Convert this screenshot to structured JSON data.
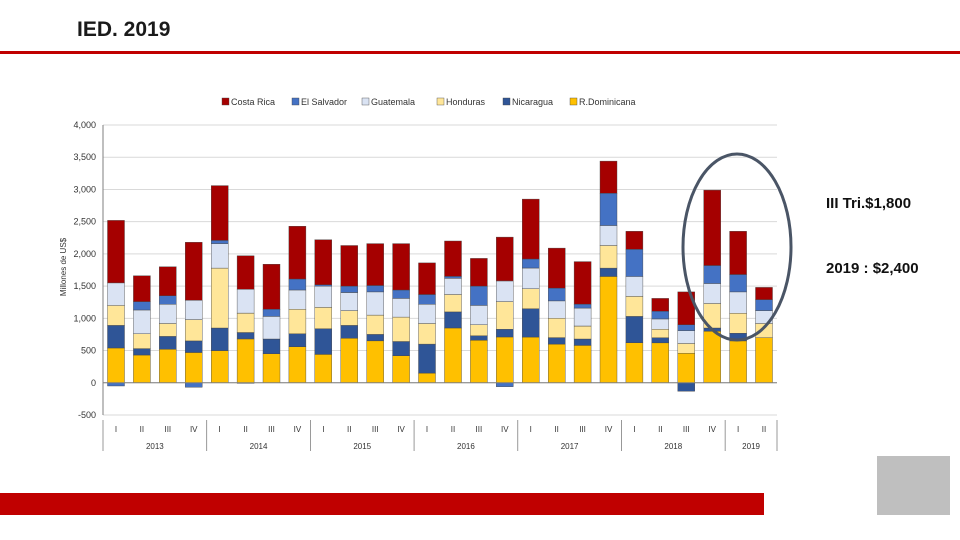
{
  "slide": {
    "title": "IED. 2019"
  },
  "annotations": {
    "quarter_note": "III Tri.$1,800",
    "year_note": "2019 : $2,400"
  },
  "colors": {
    "accent_red": "#c00000",
    "gray_box": "#bfbfbf",
    "highlight_ellipse": "#4a5566"
  },
  "chart_data": {
    "type": "bar",
    "stacked": true,
    "ylabel": "Millones de US$",
    "ylim": [
      -500,
      4000
    ],
    "yticks": [
      -500,
      0,
      500,
      1000,
      1500,
      2000,
      2500,
      3000,
      3500,
      4000
    ],
    "ytick_labels": [
      "-500",
      "0",
      "500",
      "1,000",
      "1,500",
      "2,000",
      "2,500",
      "3,000",
      "3,500",
      "4,000"
    ],
    "grid": true,
    "legend_position": "top",
    "categories": [
      "I",
      "II",
      "III",
      "IV",
      "I",
      "II",
      "III",
      "IV",
      "I",
      "II",
      "III",
      "IV",
      "I",
      "II",
      "III",
      "IV",
      "I",
      "II",
      "III",
      "IV",
      "I",
      "II",
      "III",
      "IV",
      "I",
      "II"
    ],
    "year_groups": [
      {
        "label": "2013",
        "start": 0,
        "count": 4
      },
      {
        "label": "2014",
        "start": 4,
        "count": 4
      },
      {
        "label": "2015",
        "start": 8,
        "count": 4
      },
      {
        "label": "2016",
        "start": 12,
        "count": 4
      },
      {
        "label": "2017",
        "start": 16,
        "count": 4
      },
      {
        "label": "2018",
        "start": 20,
        "count": 4
      },
      {
        "label": "2019",
        "start": 24,
        "count": 2
      }
    ],
    "series": [
      {
        "name": "R.Dominicana",
        "color": "#ffc000",
        "values": [
          540,
          430,
          520,
          470,
          500,
          680,
          450,
          560,
          440,
          690,
          650,
          420,
          150,
          850,
          660,
          710,
          710,
          600,
          580,
          1650,
          620,
          620,
          460,
          800,
          650,
          700
        ]
      },
      {
        "name": "Nicaragua",
        "color": "#2f5597",
        "values": [
          350,
          100,
          200,
          180,
          350,
          100,
          230,
          200,
          400,
          200,
          100,
          220,
          450,
          250,
          70,
          120,
          440,
          100,
          100,
          130,
          410,
          80,
          -130,
          50,
          120,
          0
        ]
      },
      {
        "name": "Honduras",
        "color": "#ffe699",
        "values": [
          310,
          230,
          200,
          330,
          930,
          300,
          0,
          380,
          330,
          230,
          300,
          380,
          320,
          270,
          170,
          430,
          310,
          300,
          200,
          350,
          310,
          130,
          150,
          380,
          310,
          220
        ]
      },
      {
        "name": "Guatemala",
        "color": "#dae3f3",
        "values": [
          350,
          370,
          300,
          300,
          380,
          370,
          350,
          300,
          330,
          280,
          360,
          290,
          300,
          250,
          300,
          320,
          320,
          270,
          280,
          310,
          310,
          160,
          200,
          310,
          330,
          200
        ]
      },
      {
        "name": "El Salvador",
        "color": "#4472c4",
        "values": [
          -50,
          130,
          130,
          -70,
          50,
          -10,
          110,
          170,
          20,
          100,
          100,
          130,
          150,
          30,
          300,
          -60,
          140,
          200,
          60,
          500,
          420,
          120,
          90,
          280,
          270,
          170
        ]
      },
      {
        "name": "Costa Rica",
        "color": "#a50000",
        "values": [
          970,
          400,
          450,
          900,
          850,
          520,
          700,
          820,
          700,
          630,
          650,
          720,
          490,
          550,
          430,
          680,
          930,
          620,
          660,
          500,
          280,
          200,
          510,
          1170,
          670,
          190
        ]
      }
    ]
  }
}
